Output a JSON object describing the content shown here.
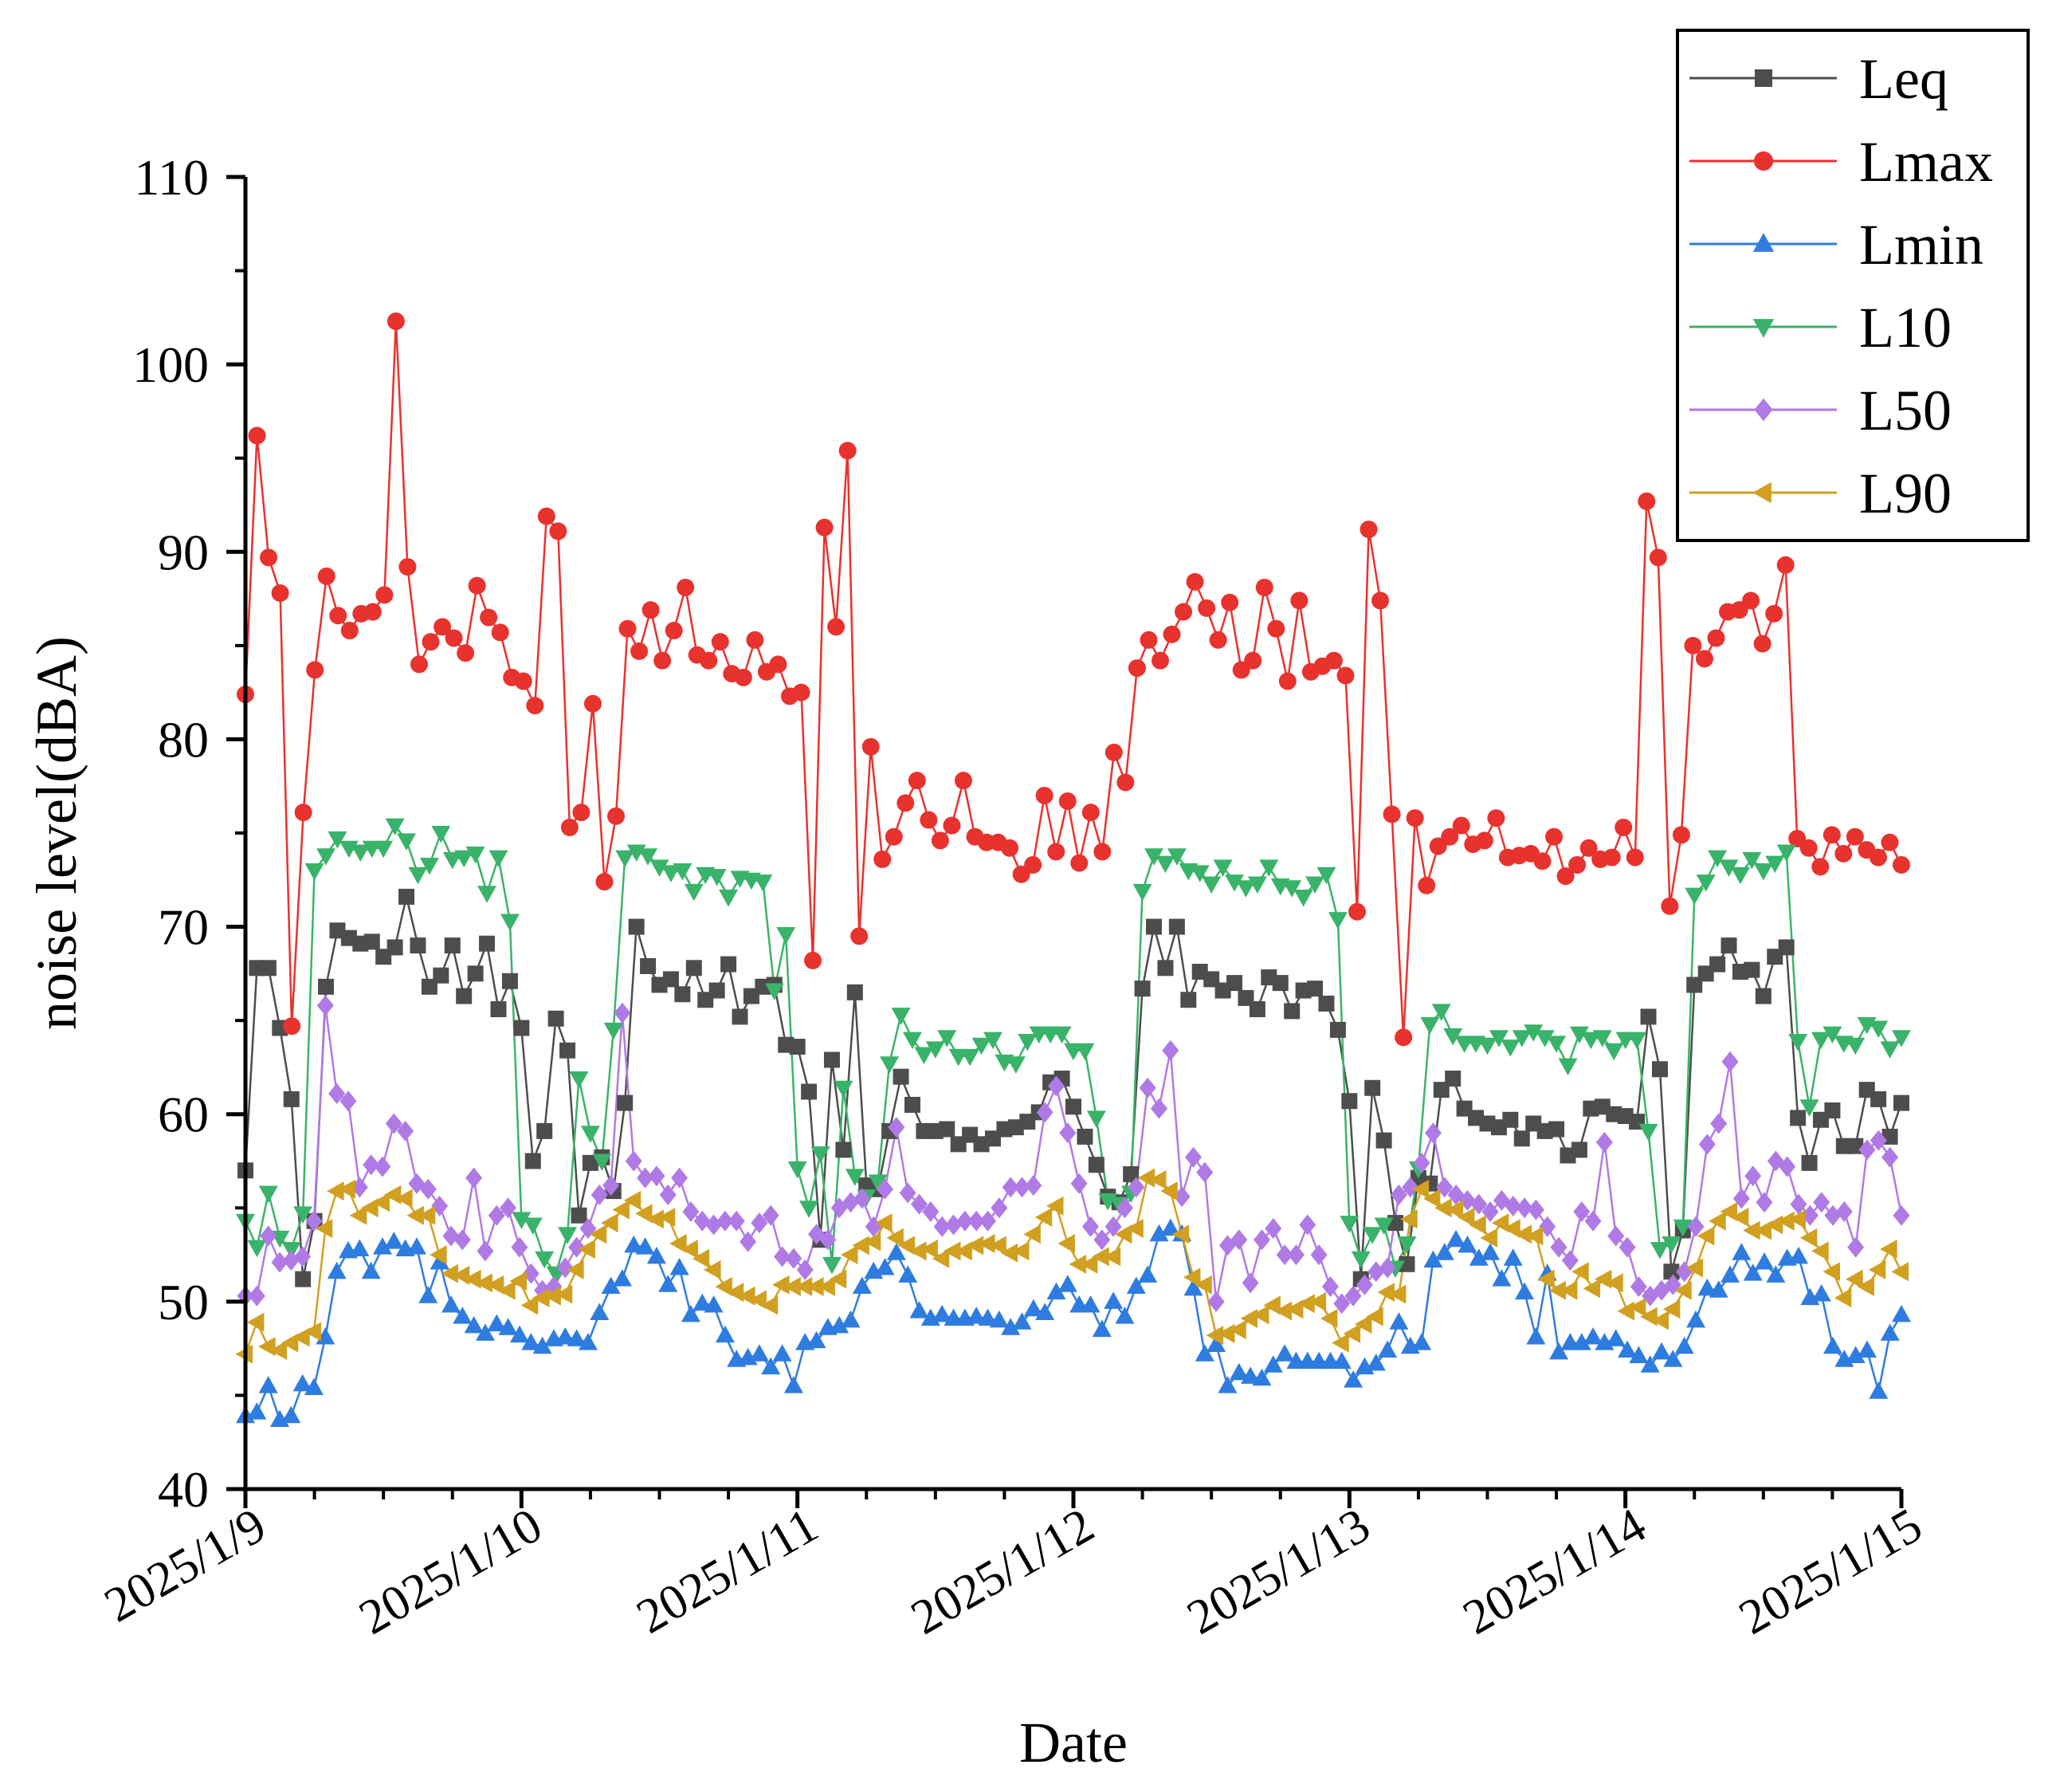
{
  "chart_data": {
    "type": "line",
    "title": "",
    "xlabel": "Date",
    "ylabel": "noise level(dBA)",
    "ylim": [
      40,
      110
    ],
    "yticks": [
      "40",
      "50",
      "60",
      "70",
      "80",
      "90",
      "100",
      "110"
    ],
    "xlim": [
      0,
      6
    ],
    "xticks": [
      "2025/1/9",
      "2025/1/10",
      "2025/1/11",
      "2025/1/12",
      "2025/1/13",
      "2025/1/14",
      "2025/1/15"
    ],
    "grid": false,
    "legend_position": "top-right",
    "series": [
      {
        "name": "Leq",
        "color": "#4d4d4d",
        "marker": "square",
        "values": [
          57.0,
          67.8,
          67.8,
          64.6,
          60.8,
          51.2,
          54.3,
          66.8,
          69.8,
          69.4,
          69.1,
          69.2,
          68.4,
          68.9,
          71.6,
          69.0,
          66.8,
          67.4,
          69.0,
          66.3,
          67.5,
          69.1,
          65.6,
          67.1,
          64.6,
          57.5,
          59.1,
          65.1,
          63.4,
          54.6,
          57.4,
          57.7,
          55.9,
          60.6,
          70.0,
          67.9,
          66.9,
          67.2,
          66.4,
          67.8,
          66.1,
          66.6,
          68.0,
          65.2,
          66.3,
          66.8,
          66.9,
          63.7,
          63.6,
          61.2,
          53.3,
          62.9,
          58.1,
          66.5,
          56.2,
          56.0,
          59.1,
          62.0,
          60.5,
          59.1,
          59.1,
          59.2,
          58.4,
          58.9,
          58.4,
          58.7,
          59.2,
          59.3,
          59.6,
          60.1,
          61.7,
          61.9,
          60.4,
          58.8,
          57.3,
          55.6,
          55.3,
          56.8,
          66.7,
          70.0,
          67.8,
          70.0,
          66.1,
          67.6,
          67.2,
          66.6,
          67.0,
          66.2,
          65.6,
          67.3,
          67.0,
          65.5,
          66.6,
          66.7,
          65.9,
          64.5,
          60.7,
          51.2,
          61.4,
          58.6,
          54.2,
          52.0,
          56.6,
          56.3,
          61.3,
          61.9,
          60.3,
          59.8,
          59.5,
          59.3,
          59.7,
          58.7,
          59.5,
          59.1,
          59.2,
          57.8,
          58.1,
          60.3,
          60.4,
          60.0,
          59.9,
          59.6,
          65.2,
          62.4,
          51.6,
          53.8,
          66.9,
          67.5,
          68.0,
          69.0,
          67.6,
          67.7,
          66.3,
          68.4,
          68.9,
          59.8,
          57.4,
          59.7,
          60.2,
          58.3,
          58.3,
          61.3,
          60.8,
          58.8,
          60.6
        ]
      },
      {
        "name": "Lmax",
        "color": "#e8322e",
        "marker": "circle",
        "values": [
          82.4,
          96.2,
          89.7,
          87.8,
          64.7,
          76.1,
          83.7,
          88.7,
          86.6,
          85.8,
          86.7,
          86.8,
          87.7,
          102.3,
          89.2,
          84.0,
          85.2,
          86.0,
          85.4,
          84.6,
          88.2,
          86.5,
          85.7,
          83.3,
          83.1,
          81.8,
          91.9,
          91.1,
          75.3,
          76.1,
          81.9,
          72.4,
          75.9,
          85.9,
          84.7,
          86.9,
          84.2,
          85.8,
          88.1,
          84.5,
          84.2,
          85.2,
          83.5,
          83.3,
          85.3,
          83.6,
          84.0,
          82.3,
          82.5,
          68.2,
          91.3,
          86.0,
          95.4,
          69.5,
          79.6,
          73.6,
          74.8,
          76.6,
          77.8,
          75.7,
          74.6,
          75.4,
          77.8,
          74.8,
          74.5,
          74.5,
          74.2,
          72.8,
          73.3,
          77.0,
          74.0,
          76.7,
          73.4,
          76.1,
          74.0,
          79.3,
          77.7,
          83.8,
          85.3,
          84.2,
          85.6,
          86.8,
          88.4,
          87.0,
          85.3,
          87.3,
          83.7,
          84.2,
          88.1,
          85.9,
          83.1,
          87.4,
          83.6,
          83.9,
          84.2,
          83.4,
          70.8,
          91.2,
          87.4,
          76.0,
          64.1,
          75.8,
          72.2,
          74.3,
          74.8,
          75.4,
          74.4,
          74.6,
          75.8,
          73.7,
          73.8,
          73.9,
          73.5,
          74.8,
          72.7,
          73.3,
          74.2,
          73.6,
          73.7,
          75.3,
          73.7,
          92.7,
          89.7,
          71.1,
          74.9,
          85.0,
          84.3,
          85.4,
          86.8,
          86.9,
          87.4,
          85.1,
          86.7,
          89.3,
          74.7,
          74.2,
          73.2,
          74.9,
          73.9,
          74.8,
          74.1,
          73.7,
          74.5,
          73.3
        ]
      },
      {
        "name": "Lmin",
        "color": "#2f7ce0",
        "marker": "triangle-up",
        "values": [
          43.9,
          44.1,
          45.5,
          43.7,
          43.9,
          45.6,
          45.4,
          48.1,
          51.6,
          52.7,
          52.8,
          51.6,
          52.9,
          53.2,
          52.8,
          52.9,
          50.3,
          52.1,
          49.8,
          49.2,
          48.7,
          48.3,
          48.8,
          48.6,
          48.2,
          47.8,
          47.6,
          48.0,
          48.1,
          48.0,
          47.8,
          49.4,
          50.8,
          51.2,
          53.0,
          52.9,
          52.4,
          50.9,
          51.8,
          49.3,
          49.9,
          49.8,
          48.2,
          46.9,
          47.0,
          47.2,
          46.5,
          47.2,
          45.5,
          47.8,
          47.9,
          48.6,
          48.7,
          49.0,
          50.8,
          51.6,
          51.8,
          52.6,
          51.4,
          49.5,
          49.1,
          49.3,
          49.1,
          49.1,
          49.2,
          49.1,
          49.0,
          48.6,
          48.9,
          49.6,
          49.4,
          50.5,
          50.9,
          49.8,
          49.8,
          48.5,
          50.0,
          49.2,
          50.8,
          51.4,
          53.6,
          53.9,
          53.6,
          50.7,
          47.2,
          47.7,
          45.5,
          46.2,
          46.0,
          45.9,
          46.6,
          47.2,
          46.8,
          46.8,
          46.8,
          46.8,
          46.8,
          45.8,
          46.5,
          46.7,
          47.4,
          48.9,
          47.6,
          47.8,
          52.2,
          52.6,
          53.3,
          53.0,
          52.3,
          52.6,
          51.2,
          52.3,
          50.5,
          48.1,
          51.5,
          47.3,
          47.8,
          47.8,
          48.1,
          47.8,
          48.0,
          47.4,
          47.1,
          46.6,
          47.3,
          46.9,
          47.6,
          49.0,
          50.7,
          50.6,
          51.4,
          52.6,
          51.5,
          52.1,
          51.4,
          52.3,
          52.4,
          50.2,
          50.4,
          47.6,
          46.9,
          47.1,
          47.4,
          45.2,
          48.3,
          49.3
        ]
      },
      {
        "name": "L10",
        "color": "#3ab36a",
        "marker": "triangle-down",
        "values": [
          54.3,
          52.9,
          55.8,
          53.4,
          52.8,
          54.7,
          73.0,
          73.8,
          74.7,
          74.2,
          74.0,
          74.2,
          74.2,
          75.4,
          74.6,
          72.8,
          73.3,
          75.0,
          73.6,
          73.7,
          73.9,
          71.8,
          73.7,
          70.3,
          54.4,
          54.1,
          52.3,
          51.5,
          53.6,
          61.9,
          59.0,
          57.5,
          64.5,
          73.7,
          74.0,
          73.8,
          73.2,
          72.9,
          73.0,
          71.9,
          72.8,
          72.7,
          71.6,
          72.6,
          72.5,
          72.4,
          66.6,
          69.6,
          57.1,
          55.0,
          57.9,
          52.0,
          61.4,
          56.7,
          55.6,
          56.4,
          62.7,
          65.3,
          64.0,
          63.2,
          63.5,
          64.1,
          63.1,
          63.1,
          63.7,
          64.0,
          62.8,
          62.7,
          63.9,
          64.3,
          64.3,
          64.3,
          63.4,
          63.4,
          59.8,
          55.4,
          55.2,
          55.8,
          71.9,
          73.8,
          73.4,
          73.8,
          73.0,
          72.9,
          72.3,
          73.2,
          72.4,
          72.1,
          72.3,
          73.2,
          72.2,
          72.1,
          71.6,
          72.3,
          72.8,
          70.4,
          54.2,
          52.3,
          53.6,
          54.1,
          51.8,
          53.1,
          57.1,
          64.8,
          65.5,
          64.2,
          63.8,
          63.8,
          63.7,
          64.1,
          63.6,
          64.1,
          64.4,
          64.1,
          63.8,
          62.6,
          64.3,
          64.0,
          64.1,
          63.4,
          64.0,
          64.0,
          59.1,
          52.8,
          53.1,
          54.0,
          71.7,
          72.4,
          73.7,
          73.2,
          72.8,
          73.6,
          73.0,
          73.4,
          74.0,
          63.9,
          60.4,
          64.0,
          64.3,
          63.8,
          63.7,
          64.8,
          64.6,
          63.5,
          64.1
        ]
      },
      {
        "name": "L50",
        "color": "#b07ae6",
        "marker": "diamond",
        "values": [
          50.3,
          50.3,
          53.5,
          52.1,
          52.2,
          52.4,
          54.3,
          65.8,
          61.1,
          60.7,
          56.1,
          57.3,
          57.2,
          59.5,
          59.1,
          56.3,
          56.0,
          55.1,
          53.5,
          53.3,
          56.6,
          52.7,
          54.6,
          55.0,
          52.9,
          51.5,
          50.6,
          50.8,
          51.8,
          52.9,
          53.9,
          55.7,
          56.2,
          65.4,
          57.5,
          56.6,
          56.7,
          55.7,
          56.6,
          54.8,
          54.3,
          54.1,
          54.3,
          54.3,
          53.2,
          54.2,
          54.6,
          52.4,
          52.3,
          51.7,
          53.6,
          53.3,
          55.0,
          55.3,
          55.5,
          54.0,
          56.0,
          59.3,
          55.8,
          55.2,
          54.8,
          54.0,
          54.1,
          54.3,
          54.3,
          54.3,
          55.0,
          56.1,
          56.1,
          56.2,
          60.1,
          61.5,
          59.0,
          56.3,
          54.0,
          53.3,
          54.0,
          55.0,
          56.1,
          61.4,
          60.3,
          63.4,
          55.6,
          57.7,
          56.9,
          50.0,
          53.0,
          53.3,
          51.0,
          53.3,
          53.9,
          52.5,
          52.5,
          54.1,
          52.5,
          50.8,
          49.9,
          50.3,
          50.9,
          51.6,
          51.8,
          55.7,
          56.1,
          57.4,
          59.0,
          56.1,
          55.7,
          55.4,
          55.2,
          54.8,
          55.4,
          55.1,
          55.0,
          54.9,
          54.0,
          52.9,
          52.2,
          54.8,
          54.3,
          58.5,
          53.5,
          52.9,
          50.8,
          50.3,
          50.6,
          50.9,
          51.6,
          54.0,
          58.4,
          59.5,
          62.8,
          55.5,
          56.7,
          55.3,
          57.5,
          57.2,
          55.2,
          54.6,
          55.3,
          54.6,
          54.8,
          52.9,
          58.1,
          58.6,
          57.7,
          54.6
        ]
      },
      {
        "name": "L90",
        "color": "#d1a020",
        "marker": "triangle-left",
        "values": [
          47.2,
          48.9,
          47.6,
          47.4,
          47.8,
          48.1,
          48.4,
          53.9,
          55.9,
          56.0,
          54.6,
          55.0,
          55.3,
          55.7,
          55.5,
          54.6,
          54.6,
          52.5,
          51.5,
          51.4,
          51.2,
          51.0,
          50.9,
          50.6,
          51.1,
          49.8,
          50.2,
          50.3,
          50.4,
          51.7,
          52.8,
          53.6,
          54.2,
          54.9,
          55.4,
          54.7,
          54.4,
          54.5,
          53.1,
          52.8,
          52.3,
          51.7,
          50.8,
          50.5,
          50.3,
          50.1,
          49.8,
          50.9,
          50.8,
          50.8,
          50.8,
          50.8,
          51.2,
          52.5,
          53.0,
          53.2,
          54.2,
          53.4,
          53.0,
          52.7,
          52.8,
          52.3,
          52.7,
          52.7,
          53.0,
          53.1,
          53.0,
          52.6,
          52.7,
          53.6,
          54.5,
          55.1,
          53.1,
          52.0,
          52.0,
          52.4,
          52.4,
          53.6,
          53.9,
          56.6,
          56.5,
          55.9,
          53.6,
          51.3,
          50.9,
          48.2,
          48.3,
          48.5,
          49.1,
          49.3,
          49.8,
          49.5,
          49.6,
          49.9,
          50.0,
          49.1,
          47.8,
          48.3,
          48.8,
          49.2,
          50.5,
          50.4,
          54.4,
          56.0,
          55.5,
          55.0,
          54.9,
          54.5,
          54.1,
          53.4,
          54.2,
          53.9,
          53.6,
          53.5,
          51.2,
          50.6,
          50.6,
          51.6,
          50.7,
          51.2,
          51.0,
          49.5,
          49.7,
          49.2,
          49.0,
          49.6,
          50.6,
          51.8,
          53.5,
          54.3,
          54.8,
          54.5,
          53.8,
          53.8,
          54.1,
          54.3,
          54.4,
          53.4,
          52.7,
          51.6,
          50.2,
          51.2,
          50.8,
          51.7,
          52.8,
          51.6
        ]
      }
    ]
  }
}
